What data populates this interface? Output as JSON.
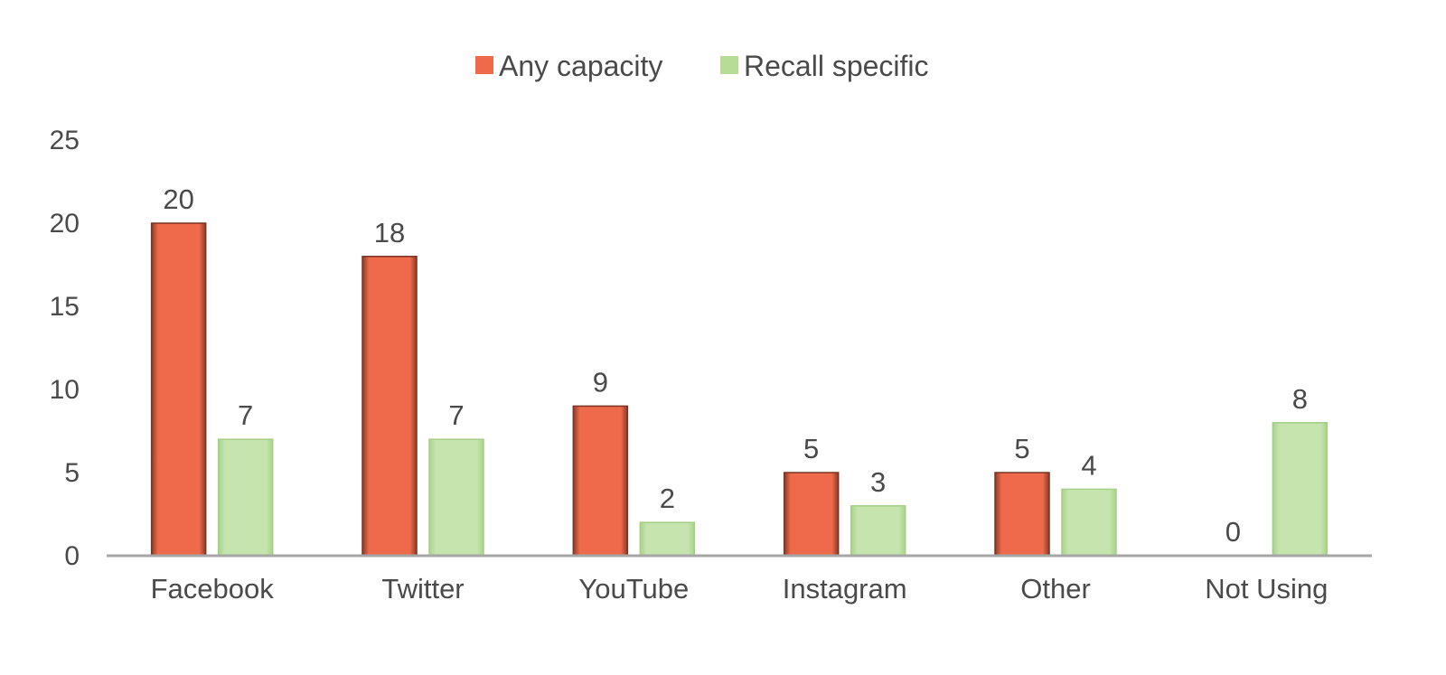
{
  "chart_data": {
    "type": "bar",
    "categories": [
      "Facebook",
      "Twitter",
      "YouTube",
      "Instagram",
      "Other",
      "Not Using"
    ],
    "series": [
      {
        "name": "Any capacity",
        "values": [
          20,
          18,
          9,
          5,
          5,
          0
        ],
        "color": "#ee6a4a"
      },
      {
        "name": "Recall specific",
        "values": [
          7,
          7,
          2,
          3,
          4,
          8
        ],
        "color": "#b6dc96"
      }
    ],
    "ylim": [
      0,
      25
    ],
    "yticks": [
      0,
      5,
      10,
      15,
      20,
      25
    ],
    "legend_position": "top-center",
    "grid": false,
    "data_labels": true
  }
}
